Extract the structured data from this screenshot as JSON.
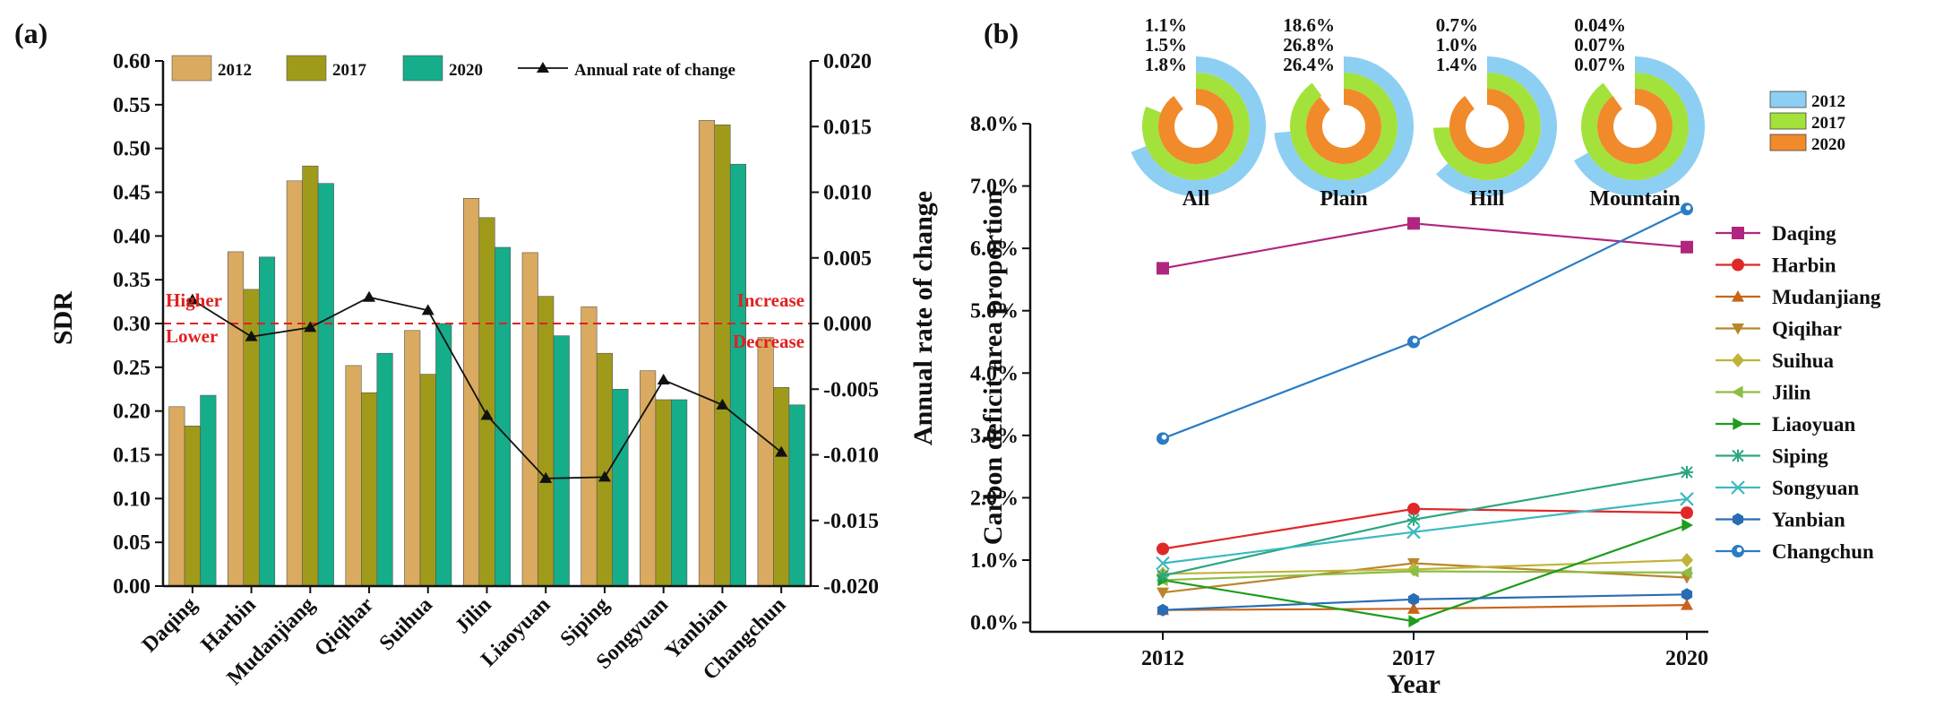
{
  "chart_data": [
    {
      "panel": "(a)",
      "type": "bar",
      "categories": [
        "Daqing",
        "Harbin",
        "Mudanjiang",
        "Qiqihar",
        "Suihua",
        "Jilin",
        "Liaoyuan",
        "Siping",
        "Songyuan",
        "Yanbian",
        "Changchun"
      ],
      "series": [
        {
          "name": "2012",
          "color": "#d9aa5f",
          "values": [
            0.205,
            0.382,
            0.463,
            0.252,
            0.292,
            0.443,
            0.381,
            0.319,
            0.246,
            0.532,
            0.284
          ]
        },
        {
          "name": "2017",
          "color": "#a09a1b",
          "values": [
            0.183,
            0.339,
            0.48,
            0.221,
            0.242,
            0.421,
            0.331,
            0.266,
            0.213,
            0.527,
            0.227
          ]
        },
        {
          "name": "2020",
          "color": "#15ad8a",
          "values": [
            0.218,
            0.376,
            0.46,
            0.266,
            0.3,
            0.387,
            0.286,
            0.225,
            0.213,
            0.482,
            0.207
          ]
        }
      ],
      "line_series": {
        "name": "Annual rate of change",
        "color": "#111111",
        "values": [
          0.0018,
          -0.001,
          -0.0003,
          0.002,
          0.001,
          -0.007,
          -0.0118,
          -0.0117,
          -0.0043,
          -0.0062,
          -0.0098
        ]
      },
      "ylabel": "SDR",
      "ylim": [
        0,
        0.6
      ],
      "yticks": [
        "0.00",
        "0.05",
        "0.10",
        "0.15",
        "0.20",
        "0.25",
        "0.30",
        "0.35",
        "0.40",
        "0.45",
        "0.50",
        "0.55",
        "0.60"
      ],
      "y2label": "Annual rate of change",
      "y2lim": [
        -0.02,
        0.02
      ],
      "y2ticks": [
        "-0.020",
        "-0.015",
        "-0.010",
        "-0.005",
        "0.000",
        "0.005",
        "0.010",
        "0.015",
        "0.020"
      ],
      "threshold": 0.3,
      "threshold_color": "#e02020",
      "annotations": {
        "higher": "Higher",
        "lower": "Lower",
        "increase": "Increase",
        "decrease": "Decrease"
      }
    },
    {
      "panel": "(b)",
      "type": "line",
      "x": [
        "2012",
        "2017",
        "2020"
      ],
      "xlabel": "Year",
      "ylabel": "Carbon deficit area proportion",
      "ylim": [
        0,
        8
      ],
      "yticks": [
        "0.0%",
        "1.0%",
        "2.0%",
        "3.0%",
        "4.0%",
        "5.0%",
        "6.0%",
        "7.0%",
        "8.0%"
      ],
      "series": [
        {
          "name": "Daqing",
          "color": "#b0267e",
          "marker": "square",
          "values": [
            5.68,
            6.4,
            6.02
          ]
        },
        {
          "name": "Harbin",
          "color": "#e02828",
          "marker": "circle",
          "values": [
            1.18,
            1.82,
            1.76
          ]
        },
        {
          "name": "Mudanjiang",
          "color": "#c8641a",
          "marker": "triangle",
          "values": [
            0.2,
            0.22,
            0.28
          ]
        },
        {
          "name": "Qiqihar",
          "color": "#b8862c",
          "marker": "triangle-down",
          "values": [
            0.48,
            0.95,
            0.72
          ]
        },
        {
          "name": "Suihua",
          "color": "#c0b438",
          "marker": "diamond",
          "values": [
            0.78,
            0.85,
            1.0
          ]
        },
        {
          "name": "Jilin",
          "color": "#8cbd44",
          "marker": "triangle-left",
          "values": [
            0.68,
            0.82,
            0.8
          ]
        },
        {
          "name": "Liaoyuan",
          "color": "#1e9c1e",
          "marker": "triangle-right",
          "values": [
            0.68,
            0.02,
            1.56
          ]
        },
        {
          "name": "Siping",
          "color": "#2aa682",
          "marker": "asterisk",
          "values": [
            0.75,
            1.65,
            2.41
          ]
        },
        {
          "name": "Songyuan",
          "color": "#3cb8c0",
          "marker": "x",
          "values": [
            0.95,
            1.45,
            1.98
          ]
        },
        {
          "name": "Yanbian",
          "color": "#2a6cb4",
          "marker": "hexagon",
          "values": [
            0.2,
            0.37,
            0.45
          ]
        },
        {
          "name": "Changchun",
          "color": "#2a7cc4",
          "marker": "circle-open",
          "values": [
            2.95,
            4.5,
            6.63
          ]
        }
      ],
      "inset_radial": {
        "type": "radial-bar",
        "years": [
          "2012",
          "2017",
          "2020"
        ],
        "colors": [
          "#8ccff3",
          "#a2e23a",
          "#f08a2a"
        ],
        "groups": [
          {
            "name": "All",
            "labels": [
              "1.1%",
              "1.5%",
              "1.8%"
            ],
            "values": [
              1.1,
              1.5,
              1.8
            ]
          },
          {
            "name": "Plain",
            "labels": [
              "18.6%",
              "26.8%",
              "26.4%"
            ],
            "values": [
              18.6,
              26.8,
              26.4
            ]
          },
          {
            "name": "Hill",
            "labels": [
              "0.7%",
              "1.0%",
              "1.4%"
            ],
            "values": [
              0.7,
              1.0,
              1.4
            ]
          },
          {
            "name": "Mountain",
            "labels": [
              "0.04%",
              "0.07%",
              "0.07%"
            ],
            "values": [
              0.04,
              0.07,
              0.07
            ]
          }
        ]
      }
    }
  ]
}
